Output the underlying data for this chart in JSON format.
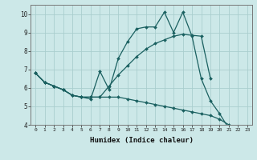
{
  "xlabel": "Humidex (Indice chaleur)",
  "background_color": "#cce8e8",
  "grid_color": "#aacece",
  "line_color": "#1a6060",
  "ylim": [
    4,
    10.5
  ],
  "xlim": [
    -0.5,
    23.5
  ],
  "lines": [
    {
      "x": [
        0,
        1,
        2,
        3,
        4,
        5,
        6,
        7,
        8,
        9,
        10,
        11,
        12,
        13,
        14,
        15,
        16,
        17,
        18,
        19,
        20,
        21
      ],
      "y": [
        6.8,
        6.3,
        6.1,
        5.9,
        5.6,
        5.5,
        5.4,
        6.9,
        5.9,
        7.6,
        8.5,
        9.2,
        9.3,
        9.3,
        10.1,
        9.0,
        10.1,
        8.8,
        6.5,
        5.3,
        4.6,
        3.8
      ]
    },
    {
      "x": [
        0,
        1,
        2,
        3,
        4,
        5,
        6,
        7,
        8,
        9,
        10,
        11,
        12,
        13,
        14,
        15,
        16,
        17,
        18,
        19
      ],
      "y": [
        6.8,
        6.3,
        6.1,
        5.9,
        5.6,
        5.5,
        5.5,
        5.5,
        6.1,
        6.7,
        7.2,
        7.7,
        8.1,
        8.4,
        8.6,
        8.8,
        8.9,
        8.85,
        8.8,
        6.5
      ]
    },
    {
      "x": [
        0,
        1,
        2,
        3,
        4,
        5,
        6,
        7,
        8,
        9,
        10,
        11,
        12,
        13,
        14,
        15,
        16,
        17,
        18,
        19,
        20,
        21,
        22,
        23
      ],
      "y": [
        6.8,
        6.3,
        6.1,
        5.9,
        5.6,
        5.5,
        5.5,
        5.5,
        5.5,
        5.5,
        5.4,
        5.3,
        5.2,
        5.1,
        5.0,
        4.9,
        4.8,
        4.7,
        4.6,
        4.5,
        4.3,
        4.0,
        3.7,
        3.7
      ]
    }
  ]
}
